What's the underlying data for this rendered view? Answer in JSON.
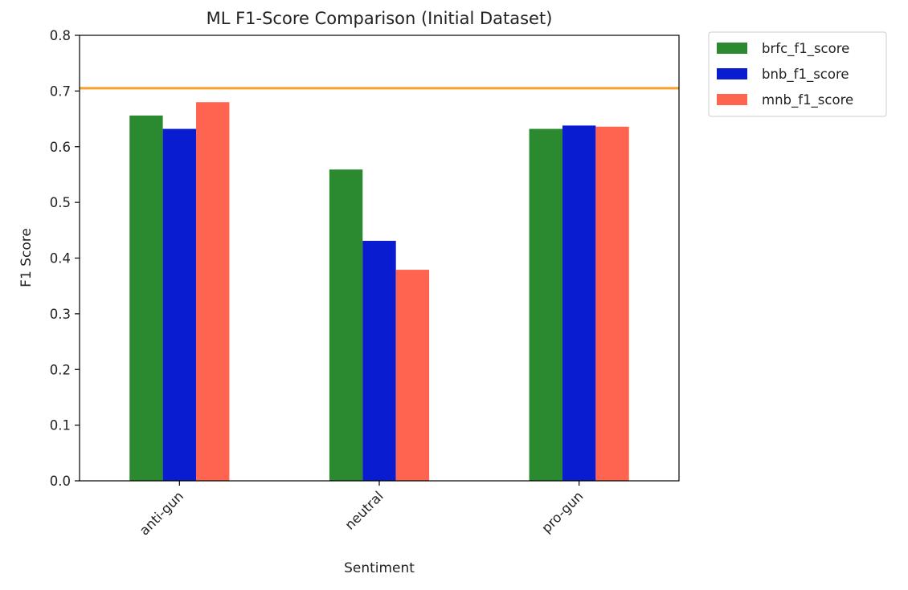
{
  "chart_data": {
    "type": "bar",
    "title": "ML F1-Score Comparison (Initial Dataset)",
    "xlabel": "Sentiment",
    "ylabel": "F1 Score",
    "ylim": [
      0,
      0.8
    ],
    "yticks": [
      0.0,
      0.1,
      0.2,
      0.3,
      0.4,
      0.5,
      0.6,
      0.7,
      0.8
    ],
    "ytick_labels": [
      "0.0",
      "0.1",
      "0.2",
      "0.3",
      "0.4",
      "0.5",
      "0.6",
      "0.7",
      "0.8"
    ],
    "categories": [
      "anti-gun",
      "neutral",
      "pro-gun"
    ],
    "series": [
      {
        "name": "brfc_f1_score",
        "color": "#2b8a2f",
        "values": [
          0.656,
          0.559,
          0.632
        ]
      },
      {
        "name": "bnb_f1_score",
        "color": "#0a1ccf",
        "values": [
          0.632,
          0.431,
          0.638
        ]
      },
      {
        "name": "mnb_f1_score",
        "color": "#ff6450",
        "values": [
          0.68,
          0.379,
          0.636
        ]
      }
    ],
    "reference_line": {
      "value": 0.705,
      "color": "#f5a02a"
    },
    "grid": false,
    "legend_position": "outside-top-right"
  }
}
